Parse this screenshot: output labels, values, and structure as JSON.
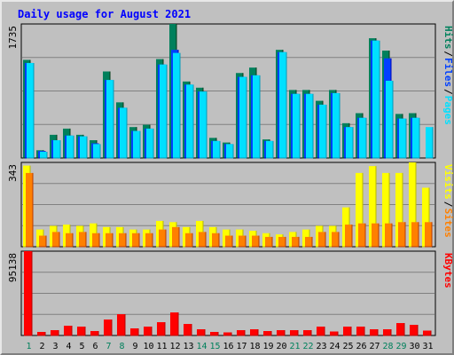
{
  "title": "Daily usage for August 2021",
  "colors": {
    "hits": "#00805c",
    "files": "#0040ff",
    "pages": "#00e0ff",
    "visits": "#ffff00",
    "sites": "#ff8000",
    "kbytes": "#ff0000",
    "weekend": "#00805c",
    "text": "#000000",
    "title": "#0000ff"
  },
  "chart_data": [
    {
      "type": "bar",
      "name_parts": [
        "Pages",
        "/",
        "Files",
        "/",
        "Hits"
      ],
      "max_label": "1735",
      "ylim": [
        0,
        1735
      ],
      "categories": [
        "1",
        "2",
        "3",
        "4",
        "5",
        "6",
        "7",
        "8",
        "9",
        "10",
        "11",
        "12",
        "13",
        "14",
        "15",
        "16",
        "17",
        "18",
        "19",
        "20",
        "21",
        "22",
        "23",
        "24",
        "25",
        "26",
        "27",
        "28",
        "29",
        "30",
        "31"
      ],
      "weekend_days": [
        1,
        7,
        8,
        14,
        15,
        21,
        22,
        28,
        29
      ],
      "series": [
        {
          "name": "Hits",
          "values": [
            1270,
            100,
            300,
            380,
            300,
            230,
            1120,
            720,
            400,
            430,
            1280,
            1735,
            990,
            910,
            260,
            200,
            1100,
            1170,
            240,
            1400,
            880,
            880,
            740,
            880,
            450,
            580,
            1550,
            1390,
            570,
            580,
            0
          ]
        },
        {
          "name": "Files",
          "values": [
            1230,
            90,
            230,
            290,
            280,
            190,
            1010,
            650,
            350,
            380,
            1210,
            1400,
            950,
            860,
            220,
            180,
            1050,
            1070,
            220,
            1370,
            830,
            830,
            690,
            840,
            400,
            520,
            1520,
            1290,
            510,
            520,
            0
          ]
        },
        {
          "name": "Pages",
          "values": [
            1230,
            80,
            230,
            290,
            280,
            180,
            1010,
            650,
            350,
            380,
            1210,
            1360,
            950,
            860,
            220,
            180,
            1050,
            1070,
            220,
            1370,
            830,
            830,
            690,
            840,
            400,
            520,
            1520,
            1000,
            510,
            520,
            400
          ]
        }
      ]
    },
    {
      "type": "bar",
      "name_parts": [
        "Sites",
        "/",
        "Visits"
      ],
      "max_label": "343",
      "ylim": [
        0,
        343
      ],
      "series": [
        {
          "name": "Visits",
          "values": [
            330,
            70,
            85,
            90,
            85,
            95,
            80,
            80,
            70,
            70,
            105,
            100,
            80,
            105,
            80,
            70,
            70,
            65,
            55,
            50,
            60,
            70,
            85,
            85,
            160,
            300,
            328,
            300,
            300,
            343,
            240
          ]
        },
        {
          "name": "Sites",
          "values": [
            300,
            45,
            60,
            55,
            60,
            55,
            55,
            55,
            55,
            55,
            70,
            80,
            55,
            60,
            55,
            45,
            45,
            45,
            40,
            40,
            40,
            40,
            60,
            60,
            90,
            95,
            95,
            95,
            100,
            100,
            100
          ]
        }
      ]
    },
    {
      "type": "bar",
      "name_parts": [
        "KBytes"
      ],
      "max_label": "95138",
      "ylim": [
        0,
        95138
      ],
      "series": [
        {
          "name": "KBytes",
          "values": [
            95138,
            4000,
            6000,
            11000,
            10000,
            5000,
            18000,
            24000,
            8000,
            10000,
            15000,
            26000,
            13000,
            7000,
            4000,
            3500,
            6000,
            7000,
            5000,
            6000,
            6000,
            6000,
            10000,
            4500,
            10000,
            10000,
            7000,
            7000,
            14000,
            12000,
            5500
          ]
        }
      ]
    }
  ]
}
